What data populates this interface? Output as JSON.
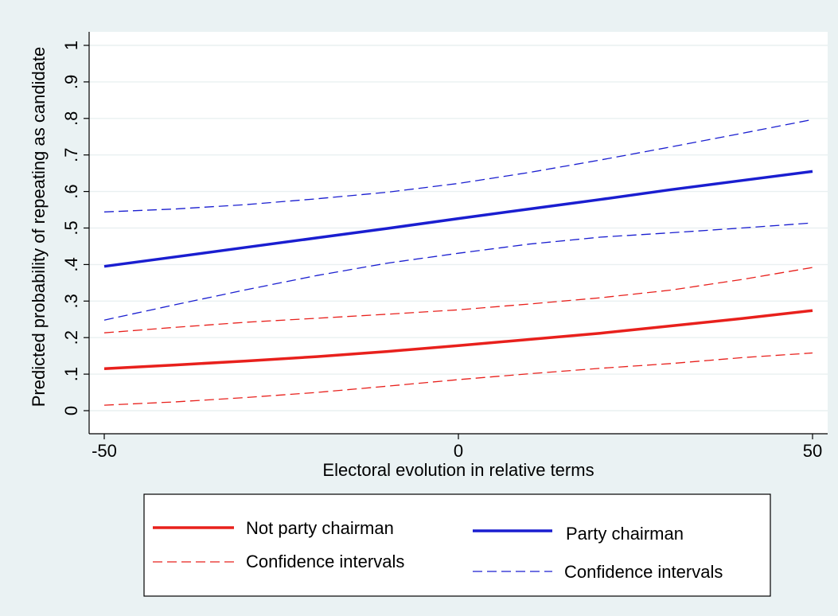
{
  "chart_data": {
    "type": "line",
    "title": "",
    "xlabel": "Electoral evolution in relative terms",
    "ylabel": "Predicted probability of repeating as candidate",
    "xlim": [
      -50,
      50
    ],
    "ylim": [
      0,
      1
    ],
    "x_ticks": [
      -50,
      0,
      50
    ],
    "x_tick_labels": [
      "-50",
      "0",
      "50"
    ],
    "y_ticks": [
      0,
      0.1,
      0.2,
      0.3,
      0.4,
      0.5,
      0.6,
      0.7,
      0.8,
      0.9,
      1
    ],
    "y_tick_labels": [
      "0",
      ".1",
      ".2",
      ".3",
      ".4",
      ".5",
      ".6",
      ".7",
      ".8",
      ".9",
      "1"
    ],
    "grid": "horizontal",
    "legend_position": "bottom",
    "x": [
      -50,
      -40,
      -30,
      -20,
      -10,
      0,
      10,
      20,
      30,
      40,
      50
    ],
    "series": [
      {
        "name": "Not party chairman",
        "color": "#e8201c",
        "style": "solid",
        "values": [
          0.115,
          0.125,
          0.136,
          0.148,
          0.162,
          0.178,
          0.195,
          0.212,
          0.232,
          0.252,
          0.274
        ]
      },
      {
        "name": "Confidence intervals",
        "color": "#e8201c",
        "style": "dashed",
        "values": [
          0.213,
          0.228,
          0.242,
          0.253,
          0.264,
          0.276,
          0.292,
          0.309,
          0.33,
          0.359,
          0.392
        ]
      },
      {
        "name": "",
        "color": "#e8201c",
        "style": "dashed",
        "values": [
          0.015,
          0.024,
          0.036,
          0.05,
          0.067,
          0.085,
          0.101,
          0.116,
          0.129,
          0.145,
          0.158
        ]
      },
      {
        "name": "Party chairman",
        "color": "#1a1ed0",
        "style": "solid",
        "values": [
          0.395,
          0.421,
          0.447,
          0.473,
          0.499,
          0.526,
          0.552,
          0.578,
          0.605,
          0.63,
          0.655
        ]
      },
      {
        "name": "Confidence intervals",
        "color": "#1a1ed0",
        "style": "dashed",
        "values": [
          0.544,
          0.552,
          0.564,
          0.58,
          0.598,
          0.622,
          0.652,
          0.686,
          0.722,
          0.759,
          0.797
        ]
      },
      {
        "name": "",
        "color": "#1a1ed0",
        "style": "dashed",
        "values": [
          0.248,
          0.29,
          0.331,
          0.37,
          0.404,
          0.431,
          0.456,
          0.475,
          0.487,
          0.5,
          0.514
        ]
      }
    ]
  },
  "legend": {
    "items": [
      {
        "label": "Not party chairman",
        "color": "#e8201c",
        "style": "solid"
      },
      {
        "label": "Party chairman",
        "color": "#1a1ed0",
        "style": "solid"
      },
      {
        "label": "Confidence intervals",
        "color": "#e8201c",
        "style": "dashed"
      },
      {
        "label": "Confidence intervals",
        "color": "#1a1ed0",
        "style": "dashed"
      }
    ]
  }
}
